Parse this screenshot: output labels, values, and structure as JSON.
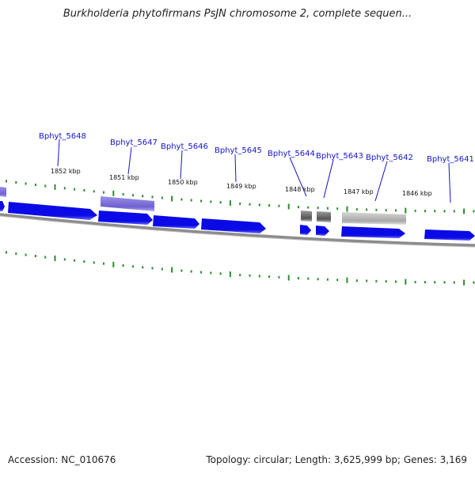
{
  "title": "Burkholderia phytofirmans PsJN chromosome 2, complete sequen...",
  "footer": {
    "accession": "Accession: NC_010676",
    "summary": "Topology: circular; Length: 3,625,999 bp; Genes: 3,169"
  },
  "colors": {
    "forward_gene": "#0a0ae6",
    "selected_gene": "#7a6fd8",
    "gray_gene": "#8a8a8a",
    "light_gray_gene": "#bdbdbd",
    "tick": "#2e8b2e",
    "backbone": "#8c8c8c",
    "label": "#1515c8"
  },
  "gene_labels": [
    "Bphyt_5648",
    "Bphyt_5647",
    "Bphyt_5646",
    "Bphyt_5645",
    "Bphyt_5644",
    "Bphyt_5643",
    "Bphyt_5642",
    "Bphyt_5641"
  ],
  "kbp_labels": [
    "1852 kbp",
    "1851 kbp",
    "1850 kbp",
    "1849 kbp",
    "1848 kbp",
    "1847 kbp",
    "1846 kbp"
  ]
}
